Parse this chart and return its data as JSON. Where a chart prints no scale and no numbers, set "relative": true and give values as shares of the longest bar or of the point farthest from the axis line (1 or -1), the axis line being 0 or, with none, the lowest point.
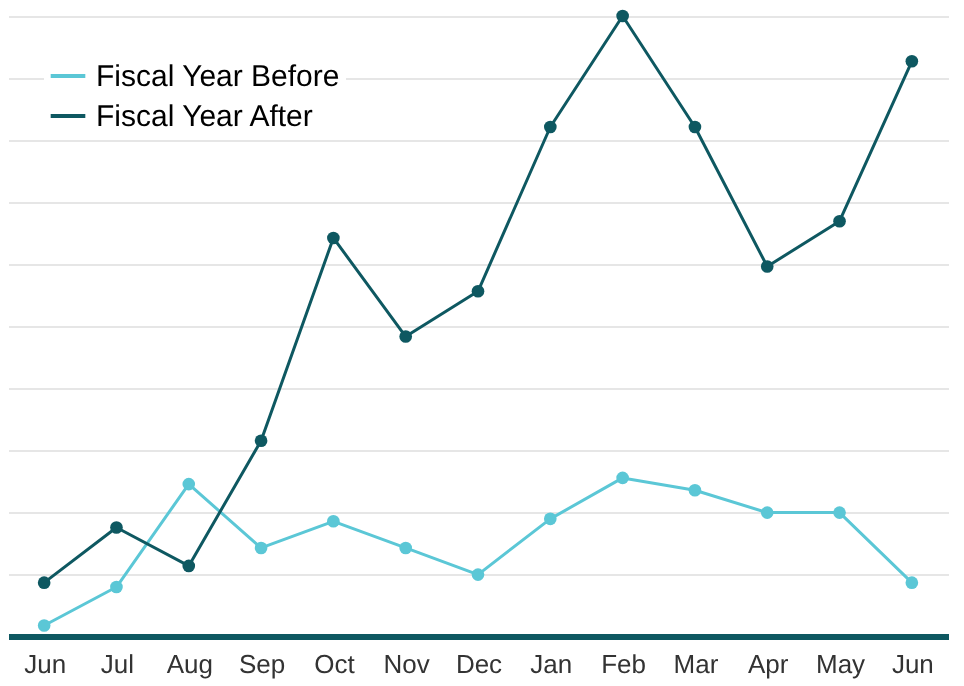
{
  "chart_data": {
    "type": "line",
    "relative": true,
    "categories": [
      "Jun",
      "Jul",
      "Aug",
      "Sep",
      "Oct",
      "Nov",
      "Dec",
      "Jan",
      "Feb",
      "Mar",
      "Apr",
      "May",
      "Jun"
    ],
    "series": [
      {
        "name": "Fiscal Year Before",
        "color": "#5bc7d6",
        "values": [
          0.017,
          0.079,
          0.245,
          0.142,
          0.185,
          0.142,
          0.099,
          0.189,
          0.255,
          0.235,
          0.199,
          0.199,
          0.086
        ]
      },
      {
        "name": "Fiscal Year After",
        "color": "#0e5861",
        "values": [
          0.086,
          0.175,
          0.113,
          0.315,
          0.642,
          0.483,
          0.556,
          0.821,
          1,
          0.821,
          0.596,
          0.669,
          0.927
        ]
      }
    ],
    "grid": "y",
    "legend": "top left",
    "marker": "circle",
    "line_style": "solid"
  }
}
